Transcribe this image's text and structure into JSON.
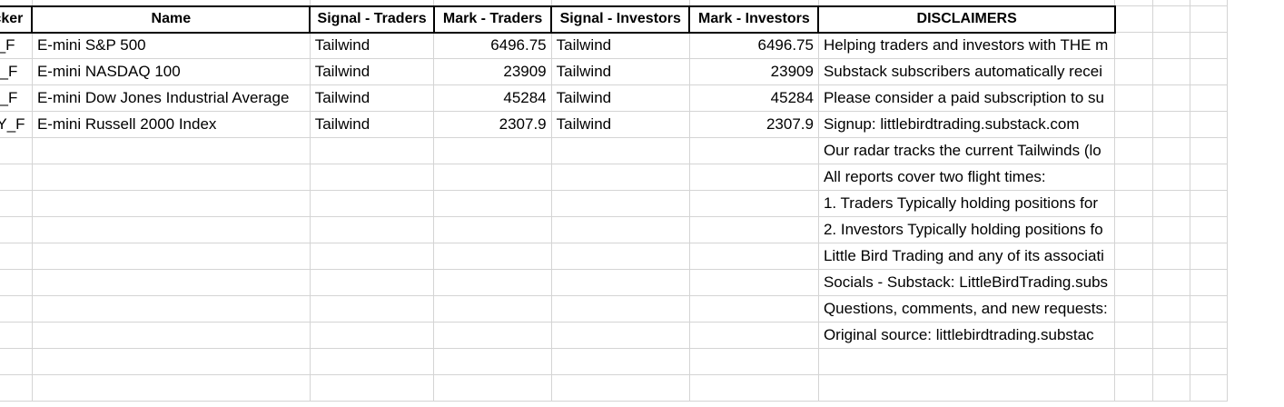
{
  "columns": [
    "Ticker",
    "Name",
    "Signal - Traders",
    "Mark - Traders",
    "Signal - Investors",
    "Mark - Investors",
    "DISCLAIMERS"
  ],
  "rows": [
    {
      "ticker": "ES_F",
      "name": "E-mini S&P 500",
      "signal_traders": "Tailwind",
      "mark_traders": "6496.75",
      "signal_investors": "Tailwind",
      "mark_investors": "6496.75"
    },
    {
      "ticker": "NQ_F",
      "name": "E-mini NASDAQ 100",
      "signal_traders": "Tailwind",
      "mark_traders": "23909",
      "signal_investors": "Tailwind",
      "mark_investors": "23909"
    },
    {
      "ticker": "YM_F",
      "name": "E-mini Dow Jones Industrial Average",
      "signal_traders": "Tailwind",
      "mark_traders": "45284",
      "signal_investors": "Tailwind",
      "mark_investors": "45284"
    },
    {
      "ticker": "RTY_F",
      "name": "E-mini Russell 2000 Index",
      "signal_traders": "Tailwind",
      "mark_traders": "2307.9",
      "signal_investors": "Tailwind",
      "mark_investors": "2307.9"
    }
  ],
  "disclaimers": [
    "Helping traders and investors with THE m",
    "Substack subscribers automatically recei",
    "Please consider a paid subscription to su",
    "Signup: littlebirdtrading.substack.com",
    "Our radar tracks the current Tailwinds (lo",
    "All reports cover two flight times:",
    "1. Traders Typically holding positions for",
    "2. Investors Typically holding positions fo",
    "Little Bird Trading and any of its associati",
    "Socials - Substack: LittleBirdTrading.subs",
    "Questions, comments, and new requests:",
    "Original source: littlebirdtrading.substac"
  ]
}
